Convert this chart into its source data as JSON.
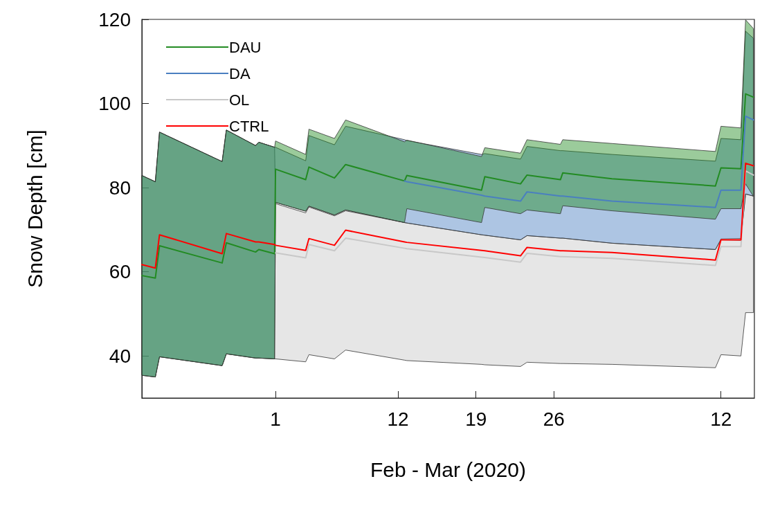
{
  "chart_data": {
    "type": "line",
    "xlabel": "Feb - Mar (2020)",
    "ylabel": "Snow Depth [cm]",
    "x": [
      "2020-01-20",
      "2020-01-21T05:00",
      "2020-01-21T14:00",
      "2020-01-27T05:00",
      "2020-01-27T14:00",
      "2020-01-30T05:00",
      "2020-01-30T12:00",
      "2020-01-31T22:00",
      "2020-02-01",
      "2020-02-03T17:00",
      "2020-02-04",
      "2020-02-06T07:00",
      "2020-02-07T07:00",
      "2020-02-12T14:00",
      "2020-02-12T19:00",
      "2020-02-19T12:00",
      "2020-02-19T19:00",
      "2020-02-23",
      "2020-02-23T14:00",
      "2020-02-26T14:00",
      "2020-02-26T19:00",
      "2020-03-02T05:00",
      "2020-03-11T12:00",
      "2020-03-12",
      "2020-03-13T19:00",
      "2020-03-14T05:00",
      "2020-03-14T22:00"
    ],
    "xlim": [
      "2020-01-20",
      "2020-03-15"
    ],
    "xticks": [
      {
        "value": "2020-02-01",
        "label": "1"
      },
      {
        "value": "2020-02-12",
        "label": "12"
      },
      {
        "value": "2020-02-19",
        "label": "19"
      },
      {
        "value": "2020-02-26",
        "label": "26"
      },
      {
        "value": "2020-03-12",
        "label": "12"
      }
    ],
    "ylim": [
      30,
      120
    ],
    "yticks": [
      40,
      60,
      80,
      100,
      120
    ],
    "legend": "top left",
    "marker": "none",
    "line_style": "solid",
    "series": [
      {
        "name": "DAU",
        "color": "#228b22",
        "values": [
          59.1,
          58.5,
          66.2,
          62.1,
          66.9,
          64.7,
          65.3,
          64.3,
          84.4,
          81.9,
          84.9,
          82.3,
          85.5,
          81.6,
          82.9,
          79.4,
          82.6,
          80.9,
          83,
          81.9,
          83.5,
          82.1,
          80.4,
          84.7,
          84.5,
          102.3,
          101.5
        ],
        "lower": [
          35.4,
          35,
          39.8,
          37.7,
          40.5,
          39.5,
          39.5,
          39.3,
          76.5,
          74.4,
          75.6,
          73.5,
          74.7,
          71.7,
          75,
          71.7,
          75.3,
          73.8,
          74.7,
          73.8,
          75.7,
          74.5,
          72.5,
          75,
          75,
          80.9,
          77.9
        ],
        "upper": [
          82.9,
          81.4,
          93.2,
          86.2,
          93.7,
          90,
          90.8,
          89.6,
          91.1,
          87.9,
          93.9,
          91.7,
          96.1,
          90.9,
          91.3,
          87.4,
          89.5,
          88.2,
          91.4,
          90.3,
          91.4,
          90.5,
          88.6,
          94.6,
          94.2,
          119.9,
          117.8
        ]
      },
      {
        "name": "DA",
        "color": "#4a7fc0",
        "values": [
          null,
          null,
          null,
          null,
          null,
          null,
          null,
          null,
          null,
          null,
          null,
          null,
          null,
          81.6,
          81.4,
          78.2,
          78,
          76.8,
          79,
          78,
          78,
          76.8,
          75.3,
          79.4,
          79.4,
          97,
          96.1
        ],
        "lower": [
          35.4,
          35,
          39.8,
          37.7,
          40.5,
          39.5,
          39.5,
          39.3,
          76.5,
          74.4,
          75.6,
          73.5,
          74.7,
          71.7,
          71.6,
          68.8,
          68.7,
          67.6,
          68.6,
          68,
          68,
          66.8,
          65.3,
          67.8,
          67.9,
          78.5,
          78
        ],
        "upper": [
          82.9,
          81.4,
          93.2,
          86.2,
          93.7,
          90,
          90.8,
          89.6,
          89.6,
          86.4,
          92.4,
          90.2,
          94.6,
          91.4,
          91.2,
          87.9,
          88.1,
          86.8,
          89.8,
          88.8,
          88.8,
          87.9,
          86.3,
          91.7,
          91.4,
          117.2,
          115.5
        ]
      },
      {
        "name": "OL",
        "color": "#c8c8c8",
        "values": [
          null,
          null,
          null,
          null,
          null,
          null,
          null,
          null,
          64.5,
          63.3,
          66.5,
          65,
          68,
          65.6,
          65.5,
          63.5,
          63.4,
          62.3,
          64.4,
          63.6,
          63.6,
          63.2,
          61.5,
          66,
          66,
          84,
          83
        ],
        "lower": [
          35.4,
          35,
          39.8,
          37.7,
          40.5,
          39.5,
          39.5,
          39.3,
          39.3,
          38.6,
          40.3,
          39.3,
          41.4,
          39,
          38.9,
          38,
          37.9,
          37.5,
          38.5,
          38.2,
          38.2,
          38,
          37.2,
          40.3,
          40,
          50.3,
          50.3
        ],
        "upper": [
          82.9,
          81.4,
          93.2,
          86.2,
          93.7,
          90,
          90.8,
          89.6,
          76.2,
          74,
          75.4,
          73.3,
          74.5,
          71.7,
          71.6,
          68.8,
          68.7,
          67.6,
          68.6,
          68,
          68,
          66.8,
          65.3,
          67.6,
          67.5,
          78.5,
          78
        ]
      },
      {
        "name": "CTRL",
        "color": "#ff0000",
        "values": [
          61.7,
          60.9,
          68.8,
          64.3,
          69.1,
          67.1,
          67.1,
          66.5,
          66.3,
          65.1,
          67.9,
          66.3,
          69.9,
          67.1,
          67,
          65.1,
          65,
          63.8,
          65.8,
          65,
          65,
          64.6,
          62.8,
          67.6,
          67.6,
          85.8,
          85.2
        ]
      }
    ]
  }
}
